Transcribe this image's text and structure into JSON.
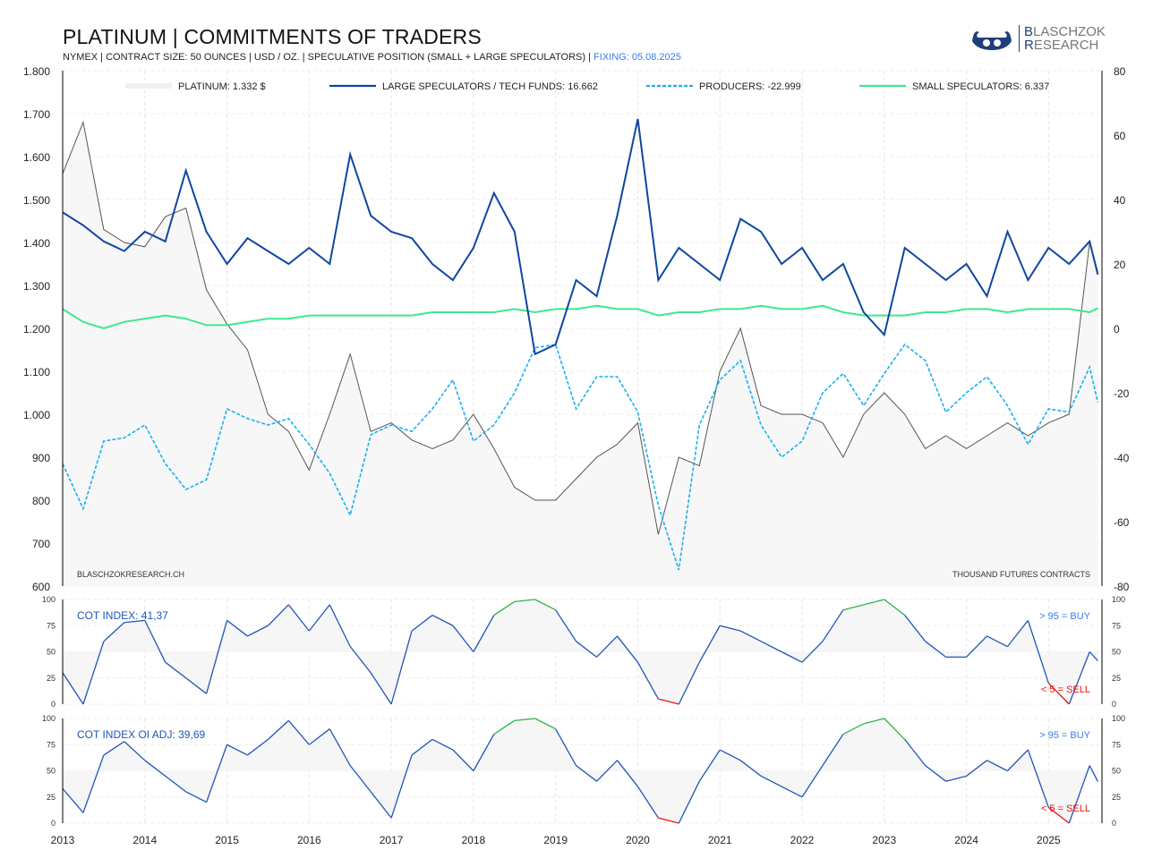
{
  "header": {
    "title": "PLATINUM | COMMITMENTS OF TRADERS",
    "subtitle": "NYMEX  |  CONTRACT SIZE: 50 OUNCES  |  USD / OZ.  |  SPECULATIVE POSITION (SMALL + LARGE SPECULATORS) |",
    "fixing": "FIXING: 05.08.2025",
    "logo_text": "BLASCHZOK RESEARCH"
  },
  "colors": {
    "price": "#555555",
    "large": "#0d47a1",
    "producers": "#1ab0ef",
    "small": "#3ee88f",
    "buy": "#2fb44a",
    "sell": "#ee1111",
    "index": "#1f55b8",
    "fixing": "#3a7bf2"
  },
  "chart_data": [
    {
      "type": "line",
      "title": "PLATINUM | COMMITMENTS OF TRADERS",
      "watermark": "BLASCHZOKRESEARCH.CH",
      "unit_note": "THOUSAND  FUTURES CONTRACTS",
      "x": [
        2013.0,
        2013.25,
        2013.5,
        2013.75,
        2014.0,
        2014.25,
        2014.5,
        2014.75,
        2015.0,
        2015.25,
        2015.5,
        2015.75,
        2016.0,
        2016.25,
        2016.5,
        2016.75,
        2017.0,
        2017.25,
        2017.5,
        2017.75,
        2018.0,
        2018.25,
        2018.5,
        2018.75,
        2019.0,
        2019.25,
        2019.5,
        2019.75,
        2020.0,
        2020.25,
        2020.5,
        2020.75,
        2021.0,
        2021.25,
        2021.5,
        2021.75,
        2022.0,
        2022.25,
        2022.5,
        2022.75,
        2023.0,
        2023.25,
        2023.5,
        2023.75,
        2024.0,
        2024.25,
        2024.5,
        2024.75,
        2025.0,
        2025.25,
        2025.5,
        2025.6
      ],
      "xlim": [
        2013,
        2025.65
      ],
      "x_tick_labels": [
        "2013",
        "2014",
        "2015",
        "2016",
        "2017",
        "2018",
        "2019",
        "2020",
        "2021",
        "2022",
        "2023",
        "2024",
        "2025"
      ],
      "y_left": {
        "lim": [
          600,
          1800
        ],
        "tick_labels": [
          "1.800",
          "1.700",
          "1.600",
          "1.500",
          "1.400",
          "1.300",
          "1.200",
          "1.100",
          "1.000",
          "900",
          "800",
          "700",
          "600"
        ]
      },
      "y_right": {
        "lim": [
          -80,
          80
        ],
        "tick_labels": [
          "80",
          "60",
          "40",
          "20",
          "0",
          "-20",
          "-40",
          "-60",
          "-80"
        ]
      },
      "legend_position": "top",
      "grid": true,
      "series": [
        {
          "name": "PLATINUM: 1.332 $",
          "axis": "left",
          "values": [
            1560,
            1680,
            1430,
            1400,
            1390,
            1460,
            1480,
            1290,
            1210,
            1150,
            1000,
            960,
            870,
            1000,
            1140,
            960,
            980,
            940,
            920,
            940,
            1000,
            920,
            830,
            800,
            800,
            850,
            900,
            930,
            980,
            720,
            900,
            880,
            1100,
            1200,
            1020,
            1000,
            1000,
            980,
            900,
            1000,
            1050,
            1000,
            920,
            950,
            920,
            950,
            980,
            950,
            980,
            1000,
            1400,
            1332
          ]
        },
        {
          "name": "LARGE SPECULATORS / TECH FUNDS: 16.662",
          "axis": "right",
          "values": [
            36,
            32,
            27,
            24,
            30,
            27,
            49,
            30,
            20,
            28,
            24,
            20,
            25,
            20,
            54,
            35,
            30,
            28,
            20,
            15,
            25,
            42,
            30,
            -8,
            -5,
            15,
            10,
            35,
            65,
            15,
            25,
            20,
            15,
            34,
            30,
            20,
            25,
            15,
            20,
            5,
            -2,
            25,
            20,
            15,
            20,
            10,
            30,
            15,
            25,
            20,
            27,
            16.7
          ]
        },
        {
          "name": "PRODUCERS: -22.999",
          "axis": "right",
          "values": [
            -42,
            -56,
            -35,
            -34,
            -30,
            -42,
            -50,
            -47,
            -25,
            -28,
            -30,
            -28,
            -36,
            -45,
            -58,
            -33,
            -30,
            -32,
            -25,
            -16,
            -35,
            -30,
            -20,
            -6,
            -5,
            -25,
            -15,
            -15,
            -26,
            -55,
            -75,
            -30,
            -16,
            -10,
            -30,
            -40,
            -35,
            -20,
            -14,
            -24,
            -14,
            -5,
            -10,
            -26,
            -20,
            -15,
            -24,
            -36,
            -25,
            -26,
            -12,
            -23
          ]
        },
        {
          "name": "SMALL SPECULATORS: 6.337",
          "axis": "right",
          "values": [
            6,
            2,
            0,
            2,
            3,
            4,
            3,
            1,
            1,
            2,
            3,
            3,
            4,
            4,
            4,
            4,
            4,
            4,
            5,
            5,
            5,
            5,
            6,
            5,
            6,
            6,
            7,
            6,
            6,
            4,
            5,
            5,
            6,
            6,
            7,
            6,
            6,
            7,
            5,
            4,
            4,
            4,
            5,
            5,
            6,
            6,
            5,
            6,
            6,
            6,
            5,
            6.3
          ]
        }
      ]
    },
    {
      "type": "line",
      "label": "COT INDEX: 41,37",
      "buy_label": "> 95 = BUY",
      "sell_label": "< 5 = SELL",
      "ylim": [
        0,
        100
      ],
      "tick_labels": [
        "100",
        "75",
        "50",
        "25",
        "0"
      ],
      "values": [
        30,
        0,
        60,
        78,
        80,
        40,
        25,
        10,
        80,
        65,
        75,
        95,
        70,
        95,
        55,
        30,
        0,
        70,
        85,
        75,
        50,
        85,
        98,
        100,
        90,
        60,
        45,
        65,
        40,
        5,
        0,
        40,
        75,
        70,
        60,
        50,
        40,
        60,
        90,
        95,
        100,
        85,
        60,
        45,
        45,
        65,
        55,
        80,
        20,
        0,
        50,
        41.37
      ]
    },
    {
      "type": "line",
      "label": "COT INDEX OI ADJ: 39,69",
      "buy_label": "> 95 = BUY",
      "sell_label": "< 5 = SELL",
      "ylim": [
        0,
        100
      ],
      "tick_labels": [
        "100",
        "75",
        "50",
        "25",
        "0"
      ],
      "values": [
        33,
        10,
        65,
        78,
        60,
        45,
        30,
        20,
        75,
        65,
        80,
        98,
        75,
        90,
        55,
        30,
        5,
        65,
        80,
        70,
        50,
        85,
        98,
        100,
        90,
        55,
        40,
        60,
        35,
        5,
        0,
        40,
        70,
        60,
        45,
        35,
        25,
        55,
        85,
        95,
        100,
        80,
        55,
        40,
        45,
        60,
        50,
        70,
        15,
        0,
        55,
        39.69
      ]
    }
  ]
}
